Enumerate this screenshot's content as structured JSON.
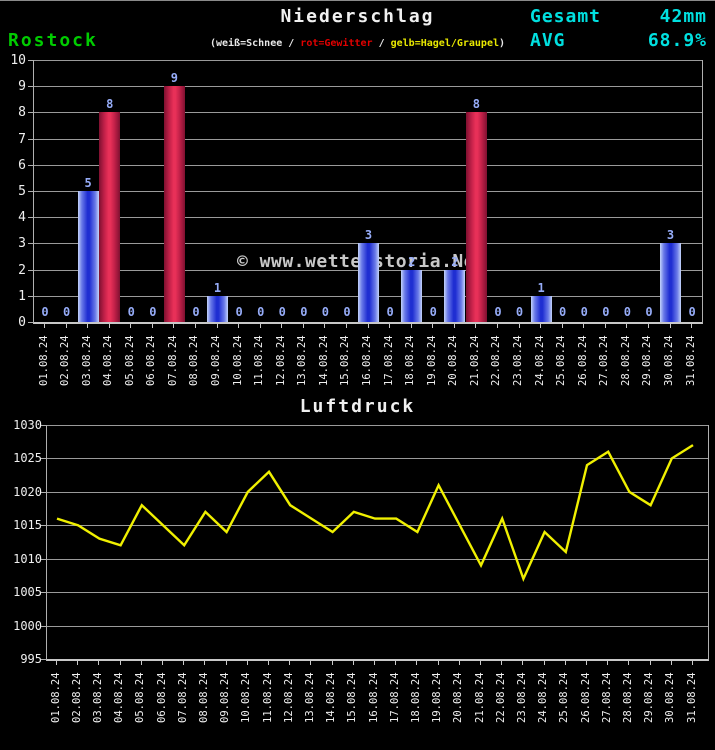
{
  "header": {
    "title": "Niederschlag",
    "station": "Rostock",
    "total_label": "Gesamt",
    "total_value": "42mm",
    "avg_label": "AVG",
    "avg_value": "68.9%",
    "legend_parts": [
      {
        "text": "(weiß=Schnee / ",
        "color": "#e8e8e8"
      },
      {
        "text": "rot=Gewitter",
        "color": "#e00000"
      },
      {
        "text": " / ",
        "color": "#e8e8e8"
      },
      {
        "text": "gelb=Hagel/Graupel",
        "color": "#e8e800"
      },
      {
        "text": ")",
        "color": "#e8e8e8"
      }
    ]
  },
  "watermark": "© www.wetterstoria.Net",
  "colors": {
    "background": "#000000",
    "accent_cyan": "#00e0e0",
    "station_green": "#00cc00",
    "text_white": "#f0f0f0",
    "legend_red": "#e00000",
    "legend_yellow": "#e8e800",
    "grid_gray": "#9a9a9a",
    "bar_label_blue": "#96acf8",
    "bar_rain_center": "#1f2ed2",
    "bar_rain_edge": "#c4d4fa",
    "bar_thunderstorm_center": "#e83058",
    "bar_thunderstorm_edge": "#7e1030",
    "pressure_line_yellow": "#f0f000",
    "watermark_gray": "#c8c8c8"
  },
  "chart_data": [
    {
      "type": "bar",
      "title": "Niederschlag",
      "subtitle_station": "Rostock",
      "unit": "mm",
      "categories": [
        "01.08.24",
        "02.08.24",
        "03.08.24",
        "04.08.24",
        "05.08.24",
        "06.08.24",
        "07.08.24",
        "08.08.24",
        "09.08.24",
        "10.08.24",
        "11.08.24",
        "12.08.24",
        "13.08.24",
        "14.08.24",
        "15.08.24",
        "16.08.24",
        "17.08.24",
        "18.08.24",
        "19.08.24",
        "20.08.24",
        "21.08.24",
        "22.08.24",
        "23.08.24",
        "24.08.24",
        "25.08.24",
        "26.08.24",
        "27.08.24",
        "28.08.24",
        "29.08.24",
        "30.08.24",
        "31.08.24"
      ],
      "values": [
        0,
        0,
        5,
        8,
        0,
        0,
        9,
        0,
        1,
        0,
        0,
        0,
        0,
        0,
        0,
        3,
        0,
        2,
        0,
        2,
        8,
        0,
        0,
        1,
        0,
        0,
        0,
        0,
        0,
        3,
        0
      ],
      "bar_kinds": [
        "rain",
        "rain",
        "rain",
        "thunderstorm",
        "rain",
        "rain",
        "thunderstorm",
        "rain",
        "rain",
        "rain",
        "rain",
        "rain",
        "rain",
        "rain",
        "rain",
        "rain",
        "rain",
        "rain",
        "rain",
        "rain",
        "thunderstorm",
        "rain",
        "rain",
        "rain",
        "rain",
        "rain",
        "rain",
        "rain",
        "rain",
        "rain",
        "rain"
      ],
      "ylim": [
        0,
        10
      ],
      "ytick_step": 1,
      "grid": true,
      "legend": "(weiß=Schnee / rot=Gewitter / gelb=Hagel/Graupel)",
      "total": "42mm",
      "avg_percent_of_normal": "68.9%"
    },
    {
      "type": "line",
      "title": "Luftdruck",
      "x": [
        "01.08.24",
        "02.08.24",
        "03.08.24",
        "04.08.24",
        "05.08.24",
        "06.08.24",
        "07.08.24",
        "08.08.24",
        "09.08.24",
        "10.08.24",
        "11.08.24",
        "12.08.24",
        "13.08.24",
        "14.08.24",
        "15.08.24",
        "16.08.24",
        "17.08.24",
        "18.08.24",
        "19.08.24",
        "20.08.24",
        "21.08.24",
        "22.08.24",
        "23.08.24",
        "24.08.24",
        "25.08.24",
        "26.08.24",
        "27.08.24",
        "28.08.24",
        "29.08.24",
        "30.08.24",
        "31.08.24"
      ],
      "values": [
        1016,
        1015,
        1013,
        1012,
        1018,
        1015,
        1012,
        1017,
        1014,
        1020,
        1023,
        1018,
        1016,
        1014,
        1017,
        1016,
        1016,
        1014,
        1021,
        1015,
        1009,
        1016,
        1007,
        1014,
        1011,
        1024,
        1026,
        1020,
        1018,
        1025,
        1027
      ],
      "ylim": [
        995,
        1030
      ],
      "ytick_step": 5,
      "grid": true,
      "legend_position": "none"
    }
  ]
}
